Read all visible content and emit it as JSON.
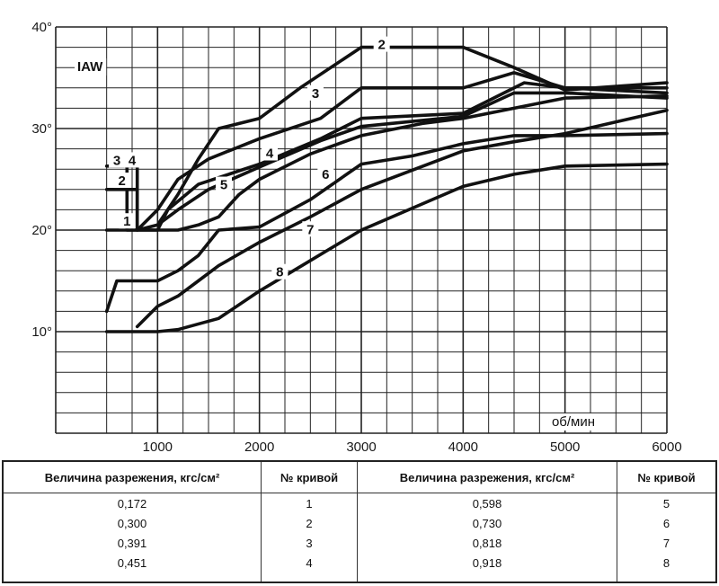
{
  "chart_data": {
    "type": "line",
    "y_unit_label": "IAW",
    "x_unit_label": "об/мин",
    "xlim": [
      0,
      6000
    ],
    "ylim": [
      0,
      40
    ],
    "x_ticks": [
      {
        "value": 1000,
        "label": "1000"
      },
      {
        "value": 2000,
        "label": "2000"
      },
      {
        "value": 3000,
        "label": "3000"
      },
      {
        "value": 4000,
        "label": "4000"
      },
      {
        "value": 5000,
        "label": "5000"
      },
      {
        "value": 6000,
        "label": "6000"
      }
    ],
    "y_ticks": [
      {
        "value": 10,
        "label": "10°"
      },
      {
        "value": 20,
        "label": "20°"
      },
      {
        "value": 30,
        "label": "30°"
      },
      {
        "value": 40,
        "label": "40°"
      }
    ],
    "grid": true,
    "series": [
      {
        "name": "1",
        "points": [
          [
            500,
            20
          ],
          [
            1000,
            20
          ],
          [
            1200,
            20
          ],
          [
            1400,
            20.5
          ],
          [
            1600,
            21.3
          ],
          [
            1800,
            23.5
          ],
          [
            2000,
            25
          ],
          [
            2500,
            27.5
          ],
          [
            3000,
            29.3
          ],
          [
            3600,
            30.5
          ],
          [
            4000,
            31
          ],
          [
            4500,
            32
          ],
          [
            5000,
            33
          ],
          [
            6000,
            33.2
          ]
        ]
      },
      {
        "name": "2",
        "points": [
          [
            500,
            24
          ],
          [
            800,
            24
          ],
          [
            800,
            20
          ],
          [
            1000,
            20.5
          ],
          [
            1200,
            23.5
          ],
          [
            1400,
            27
          ],
          [
            1600,
            30
          ],
          [
            2000,
            31
          ],
          [
            2400,
            34
          ],
          [
            3000,
            38
          ],
          [
            4000,
            38
          ],
          [
            4500,
            36
          ],
          [
            5000,
            33.8
          ],
          [
            6000,
            34.5
          ]
        ]
      },
      {
        "name": "3",
        "points": [
          [
            500,
            26.3
          ],
          [
            800,
            26.3
          ],
          [
            800,
            20
          ],
          [
            1000,
            22
          ],
          [
            1200,
            25
          ],
          [
            1500,
            27
          ],
          [
            2000,
            29
          ],
          [
            2600,
            31
          ],
          [
            3000,
            34
          ],
          [
            4000,
            34
          ],
          [
            4500,
            35.5
          ],
          [
            5000,
            34
          ],
          [
            6000,
            34
          ]
        ]
      },
      {
        "name": "4",
        "points": [
          [
            700,
            26.3
          ],
          [
            700,
            20
          ],
          [
            1000,
            20
          ],
          [
            1100,
            22
          ],
          [
            1400,
            24.5
          ],
          [
            2000,
            26.5
          ],
          [
            2600,
            29
          ],
          [
            3000,
            31
          ],
          [
            4000,
            31.5
          ],
          [
            4600,
            34.5
          ],
          [
            5000,
            34
          ],
          [
            6000,
            33.5
          ]
        ]
      },
      {
        "name": "5",
        "points": [
          [
            1000,
            20.5
          ],
          [
            1200,
            22
          ],
          [
            1500,
            24
          ],
          [
            2000,
            26.2
          ],
          [
            2600,
            28.8
          ],
          [
            3000,
            30.2
          ],
          [
            4000,
            31.2
          ],
          [
            4500,
            33.5
          ],
          [
            5000,
            33.5
          ],
          [
            6000,
            33
          ]
        ]
      },
      {
        "name": "6",
        "points": [
          [
            500,
            12
          ],
          [
            600,
            15
          ],
          [
            1000,
            15
          ],
          [
            1200,
            16
          ],
          [
            1400,
            17.5
          ],
          [
            1600,
            20
          ],
          [
            2000,
            20.3
          ],
          [
            2500,
            23
          ],
          [
            3000,
            26.5
          ],
          [
            3500,
            27.3
          ],
          [
            4000,
            28.5
          ],
          [
            4500,
            29.3
          ],
          [
            5000,
            29.3
          ],
          [
            6000,
            29.5
          ]
        ]
      },
      {
        "name": "7",
        "points": [
          [
            800,
            10.5
          ],
          [
            1000,
            12.5
          ],
          [
            1200,
            13.5
          ],
          [
            1400,
            15
          ],
          [
            1600,
            16.5
          ],
          [
            2000,
            18.8
          ],
          [
            2500,
            21.3
          ],
          [
            3000,
            24
          ],
          [
            4000,
            27.8
          ],
          [
            4500,
            28.7
          ],
          [
            5000,
            29.5
          ],
          [
            6000,
            31.8
          ]
        ]
      },
      {
        "name": "8",
        "points": [
          [
            500,
            10
          ],
          [
            1000,
            10
          ],
          [
            1200,
            10.2
          ],
          [
            1600,
            11.3
          ],
          [
            2000,
            14
          ],
          [
            2500,
            17
          ],
          [
            3000,
            20
          ],
          [
            4000,
            24.3
          ],
          [
            4500,
            25.5
          ],
          [
            5000,
            26.3
          ],
          [
            6000,
            26.5
          ]
        ]
      }
    ],
    "curve_labels": [
      {
        "series": "1",
        "text": "1",
        "x": 700,
        "y": 20.6
      },
      {
        "series": "2",
        "text": "2",
        "x": 3200,
        "y": 38
      },
      {
        "series": "2",
        "text": "2",
        "x": 650,
        "y": 24.6
      },
      {
        "series": "3",
        "text": "3",
        "x": 2550,
        "y": 33.2
      },
      {
        "series": "3",
        "text": "3",
        "x": 600,
        "y": 26.6
      },
      {
        "series": "4",
        "text": "4",
        "x": 2100,
        "y": 27.3
      },
      {
        "series": "4",
        "text": "4",
        "x": 750,
        "y": 26.6
      },
      {
        "series": "5",
        "text": "5",
        "x": 1650,
        "y": 24.2
      },
      {
        "series": "6",
        "text": "6",
        "x": 2650,
        "y": 25.2
      },
      {
        "series": "7",
        "text": "7",
        "x": 2500,
        "y": 19.8
      },
      {
        "series": "8",
        "text": "8",
        "x": 2200,
        "y": 15.6
      }
    ]
  },
  "legend_table": {
    "col_vacuum": "Величина разрежения, кгс/см²",
    "col_curve": "№ кривой",
    "rows_left": [
      {
        "vacuum": "0,172",
        "curve": "1"
      },
      {
        "vacuum": "0,300",
        "curve": "2"
      },
      {
        "vacuum": "0,391",
        "curve": "3"
      },
      {
        "vacuum": "0,451",
        "curve": "4"
      }
    ],
    "rows_right": [
      {
        "vacuum": "0,598",
        "curve": "5"
      },
      {
        "vacuum": "0,730",
        "curve": "6"
      },
      {
        "vacuum": "0,818",
        "curve": "7"
      },
      {
        "vacuum": "0,918",
        "curve": "8"
      }
    ]
  }
}
